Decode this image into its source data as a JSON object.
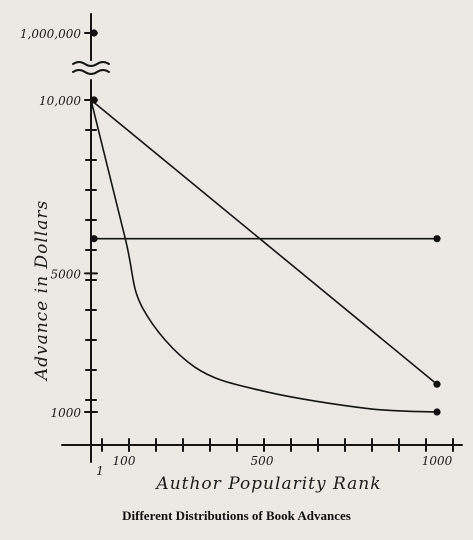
{
  "chart_data": {
    "type": "line",
    "title": "Different Distributions of Book Advances",
    "xlabel": "Author Popularity Rank",
    "ylabel": "Advance in Dollars",
    "x_ticks": [
      "1",
      "100",
      "500",
      "1000"
    ],
    "y_ticks": [
      "1000",
      "5000",
      "10,000",
      "1,000,000"
    ],
    "axis_break": true,
    "grid": false,
    "series": [
      {
        "points": [
          [
            1,
            1000000
          ]
        ]
      },
      {
        "points": [
          [
            1,
            10000
          ],
          [
            1000,
            1800
          ]
        ]
      },
      {
        "points": [
          [
            1,
            6000
          ],
          [
            1000,
            6000
          ]
        ]
      },
      {
        "points": [
          [
            1,
            10000
          ],
          [
            100,
            6000
          ],
          [
            150,
            4000
          ],
          [
            300,
            2300
          ],
          [
            500,
            1600
          ],
          [
            800,
            1100
          ],
          [
            1000,
            1000
          ]
        ]
      }
    ]
  }
}
